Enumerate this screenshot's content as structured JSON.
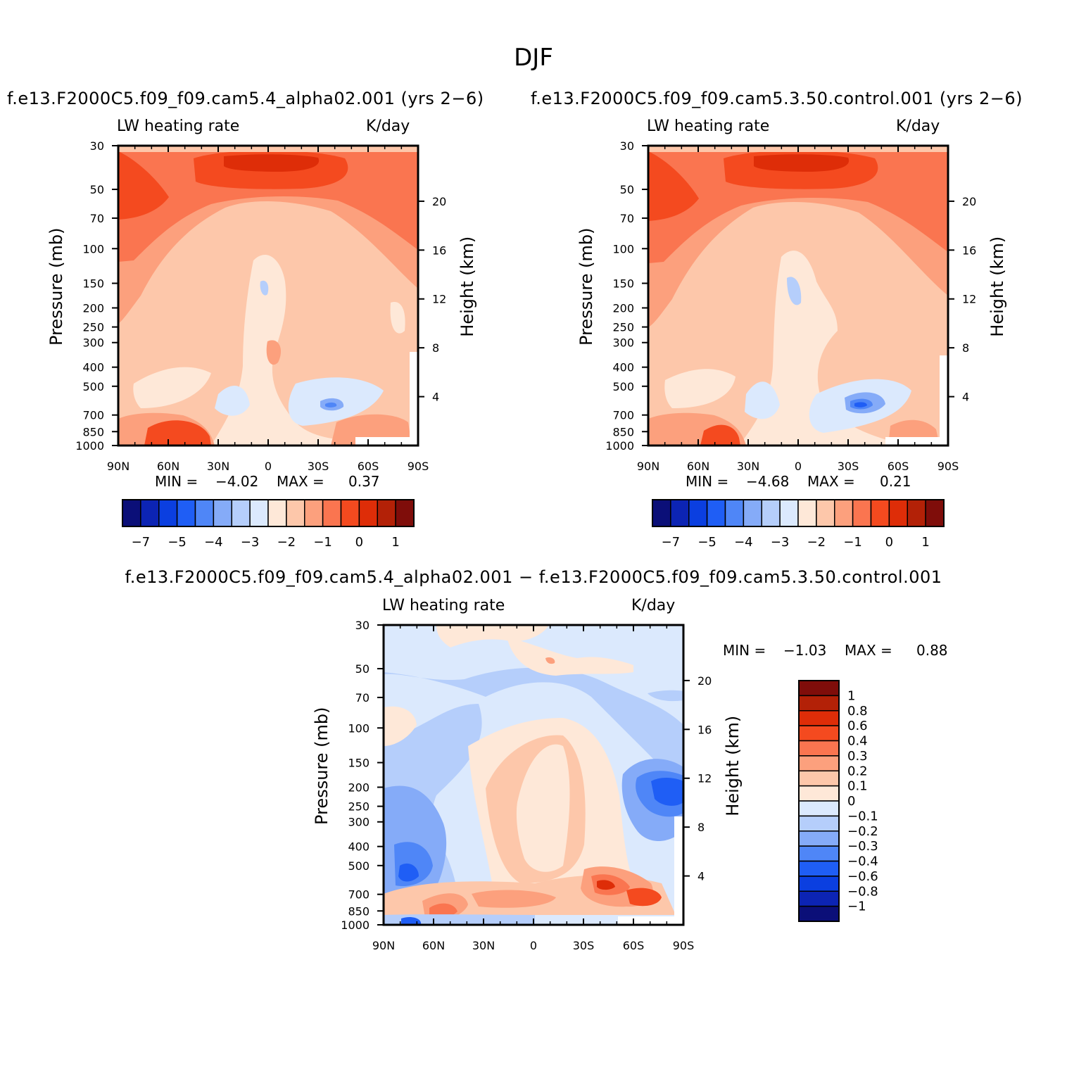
{
  "page_title": "DJF",
  "panels": [
    {
      "case_title": "f.e13.F2000C5.f09_f09.cam5.4_alpha02.001 (yrs 2-6)",
      "variable": "LW heating rate",
      "units": "K/day",
      "min_label": "MIN =",
      "min_value": "-4.02",
      "max_label": "MAX =",
      "max_value": "0.37"
    },
    {
      "case_title": "f.e13.F2000C5.f09_f09.cam5.3.50.control.001 (yrs 2-6)",
      "variable": "LW heating rate",
      "units": "K/day",
      "min_label": "MIN =",
      "min_value": "-4.68",
      "max_label": "MAX =",
      "max_value": "0.21"
    },
    {
      "case_title": "f.e13.F2000C5.f09_f09.cam5.4_alpha02.001 - f.e13.F2000C5.f09_f09.cam5.3.50.control.001",
      "variable": "LW heating rate",
      "units": "K/day",
      "min_label": "MIN =",
      "min_value": "-1.03",
      "max_label": "MAX =",
      "max_value": "0.88"
    }
  ],
  "chart_data": [
    {
      "type": "heatmap",
      "title": "LW heating rate",
      "units": "K/day",
      "xlabel": "",
      "ylabel": "Pressure (mb)",
      "ylabel_right": "Height (km)",
      "x_ticks": [
        "90N",
        "60N",
        "30N",
        "0",
        "30S",
        "60S",
        "90S"
      ],
      "y_ticks": [
        30,
        50,
        70,
        100,
        150,
        200,
        250,
        300,
        400,
        500,
        700,
        850,
        1000
      ],
      "y_right_ticks": [
        20,
        16,
        12,
        8,
        4
      ],
      "colorbar_ticks": [
        "-7",
        "-5",
        "-4",
        "-3",
        "-2",
        "-1",
        "0",
        "1"
      ],
      "colorbar_colors": [
        "#0b0f78",
        "#0c24b4",
        "#0b3fe0",
        "#1f5ef5",
        "#4f86f7",
        "#85abf8",
        "#b5cefb",
        "#dbe9fd",
        "#fee8d8",
        "#fdc7aa",
        "#fca07d",
        "#fa7550",
        "#f44a1f",
        "#de2d08",
        "#b32107",
        "#7f0d0a"
      ],
      "min": -4.02,
      "max": 0.37
    },
    {
      "type": "heatmap",
      "title": "LW heating rate",
      "units": "K/day",
      "xlabel": "",
      "ylabel": "Pressure (mb)",
      "ylabel_right": "Height (km)",
      "x_ticks": [
        "90N",
        "60N",
        "30N",
        "0",
        "30S",
        "60S",
        "90S"
      ],
      "y_ticks": [
        30,
        50,
        70,
        100,
        150,
        200,
        250,
        300,
        400,
        500,
        700,
        850,
        1000
      ],
      "y_right_ticks": [
        20,
        16,
        12,
        8,
        4
      ],
      "colorbar_ticks": [
        "-7",
        "-5",
        "-4",
        "-3",
        "-2",
        "-1",
        "0",
        "1"
      ],
      "colorbar_colors": [
        "#0b0f78",
        "#0c24b4",
        "#0b3fe0",
        "#1f5ef5",
        "#4f86f7",
        "#85abf8",
        "#b5cefb",
        "#dbe9fd",
        "#fee8d8",
        "#fdc7aa",
        "#fca07d",
        "#fa7550",
        "#f44a1f",
        "#de2d08",
        "#b32107",
        "#7f0d0a"
      ],
      "min": -4.68,
      "max": 0.21
    },
    {
      "type": "heatmap",
      "title": "LW heating rate",
      "units": "K/day",
      "xlabel": "",
      "ylabel": "Pressure (mb)",
      "ylabel_right": "Height (km)",
      "x_ticks": [
        "90N",
        "60N",
        "30N",
        "0",
        "30S",
        "60S",
        "90S"
      ],
      "y_ticks": [
        30,
        50,
        70,
        100,
        150,
        200,
        250,
        300,
        400,
        500,
        700,
        850,
        1000
      ],
      "y_right_ticks": [
        20,
        16,
        12,
        8,
        4
      ],
      "colorbar_ticks": [
        "1",
        "0.8",
        "0.6",
        "0.4",
        "0.3",
        "0.2",
        "0.1",
        "0",
        "-0.1",
        "-0.2",
        "-0.3",
        "-0.4",
        "-0.6",
        "-0.8",
        "-1"
      ],
      "colorbar_colors": [
        "#7f0d0a",
        "#b32107",
        "#de2d08",
        "#f44a1f",
        "#fa7550",
        "#fca07d",
        "#fdc7aa",
        "#fee8d8",
        "#dbe9fd",
        "#b5cefb",
        "#85abf8",
        "#4f86f7",
        "#1f5ef5",
        "#0b3fe0",
        "#0c24b4",
        "#0b0f78"
      ],
      "min": -1.03,
      "max": 0.88
    }
  ]
}
